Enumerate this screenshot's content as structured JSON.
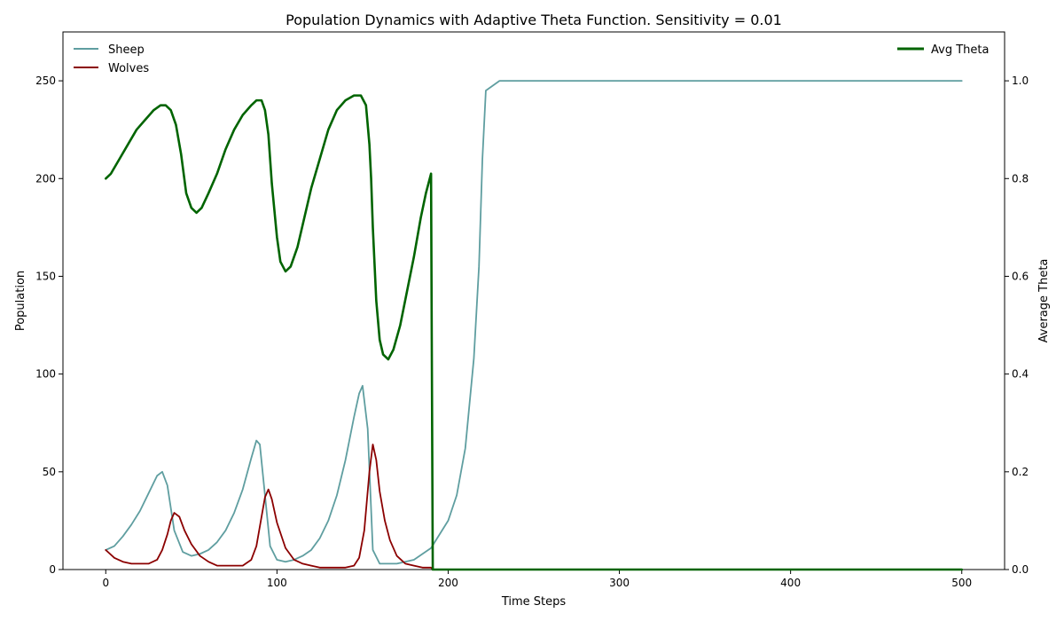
{
  "chart_data": {
    "type": "line",
    "title": "Population Dynamics with Adaptive Theta Function. Sensitivity = 0.01",
    "xlabel": "Time Steps",
    "ylabel": "Population",
    "y2label": "Average Theta",
    "xlim": [
      -25,
      525
    ],
    "ylim": [
      0,
      275
    ],
    "y2lim": [
      0,
      1.1
    ],
    "xticks": [
      0,
      100,
      200,
      300,
      400,
      500
    ],
    "yticks": [
      0,
      50,
      100,
      150,
      200,
      250
    ],
    "y2ticks": [
      "0.0",
      "0.2",
      "0.4",
      "0.6",
      "0.8",
      "1.0"
    ],
    "grid": false,
    "legend_left_placement": "top-left",
    "legend_right_placement": "top-right",
    "colors": {
      "sheep": "#5f9ea0",
      "wolves": "#8b0000",
      "theta": "#006400"
    },
    "series": [
      {
        "name": "Sheep",
        "axis": "left",
        "x": [
          0,
          5,
          10,
          15,
          20,
          25,
          30,
          33,
          36,
          40,
          45,
          50,
          55,
          60,
          65,
          70,
          75,
          80,
          85,
          88,
          90,
          93,
          96,
          100,
          105,
          110,
          115,
          120,
          125,
          130,
          135,
          140,
          145,
          148,
          150,
          153,
          156,
          160,
          170,
          180,
          190,
          200,
          205,
          210,
          215,
          218,
          220,
          222,
          230,
          260,
          300,
          400,
          500
        ],
        "y": [
          10,
          12,
          17,
          23,
          30,
          39,
          48,
          50,
          43,
          20,
          9,
          7,
          8,
          10,
          14,
          20,
          29,
          41,
          57,
          66,
          64,
          38,
          12,
          5,
          4,
          5,
          7,
          10,
          16,
          25,
          38,
          56,
          78,
          90,
          94,
          72,
          10,
          3,
          3,
          5,
          11,
          25,
          38,
          62,
          108,
          155,
          210,
          245,
          250,
          250,
          250,
          250,
          250
        ]
      },
      {
        "name": "Wolves",
        "axis": "left",
        "x": [
          0,
          5,
          10,
          15,
          20,
          25,
          30,
          33,
          36,
          38,
          40,
          43,
          46,
          50,
          55,
          60,
          65,
          70,
          75,
          80,
          85,
          88,
          90,
          93,
          95,
          97,
          100,
          105,
          110,
          115,
          120,
          125,
          130,
          135,
          140,
          145,
          148,
          151,
          154,
          156,
          158,
          160,
          163,
          166,
          170,
          175,
          180,
          185,
          190,
          191,
          200,
          300,
          400,
          500
        ],
        "y": [
          10,
          6,
          4,
          3,
          3,
          3,
          5,
          10,
          18,
          25,
          29,
          27,
          20,
          13,
          7,
          4,
          2,
          2,
          2,
          2,
          5,
          12,
          22,
          37,
          41,
          36,
          24,
          11,
          5,
          3,
          2,
          1,
          1,
          1,
          1,
          2,
          6,
          20,
          50,
          64,
          56,
          40,
          25,
          15,
          7,
          3,
          2,
          1,
          1,
          0,
          0,
          0,
          0,
          0
        ]
      },
      {
        "name": "Avg Theta",
        "axis": "right",
        "x": [
          0,
          3,
          8,
          13,
          18,
          23,
          28,
          32,
          35,
          38,
          41,
          44,
          47,
          50,
          53,
          56,
          60,
          65,
          70,
          75,
          80,
          85,
          88,
          91,
          93,
          95,
          97,
          100,
          102,
          105,
          108,
          112,
          116,
          120,
          125,
          130,
          135,
          140,
          145,
          149,
          152,
          154,
          155,
          156,
          158,
          160,
          162,
          165,
          168,
          172,
          176,
          180,
          184,
          187,
          190,
          190.5,
          191,
          192,
          200,
          500
        ],
        "y": [
          0.8,
          0.81,
          0.84,
          0.87,
          0.9,
          0.92,
          0.94,
          0.95,
          0.95,
          0.94,
          0.91,
          0.85,
          0.77,
          0.74,
          0.73,
          0.74,
          0.77,
          0.81,
          0.86,
          0.9,
          0.93,
          0.95,
          0.96,
          0.96,
          0.94,
          0.89,
          0.79,
          0.68,
          0.63,
          0.61,
          0.62,
          0.66,
          0.72,
          0.78,
          0.84,
          0.9,
          0.94,
          0.96,
          0.97,
          0.97,
          0.95,
          0.87,
          0.8,
          0.7,
          0.55,
          0.47,
          0.44,
          0.43,
          0.45,
          0.5,
          0.57,
          0.64,
          0.72,
          0.77,
          0.81,
          0.4,
          0.0,
          0.0,
          0.0,
          0.0
        ]
      }
    ]
  }
}
